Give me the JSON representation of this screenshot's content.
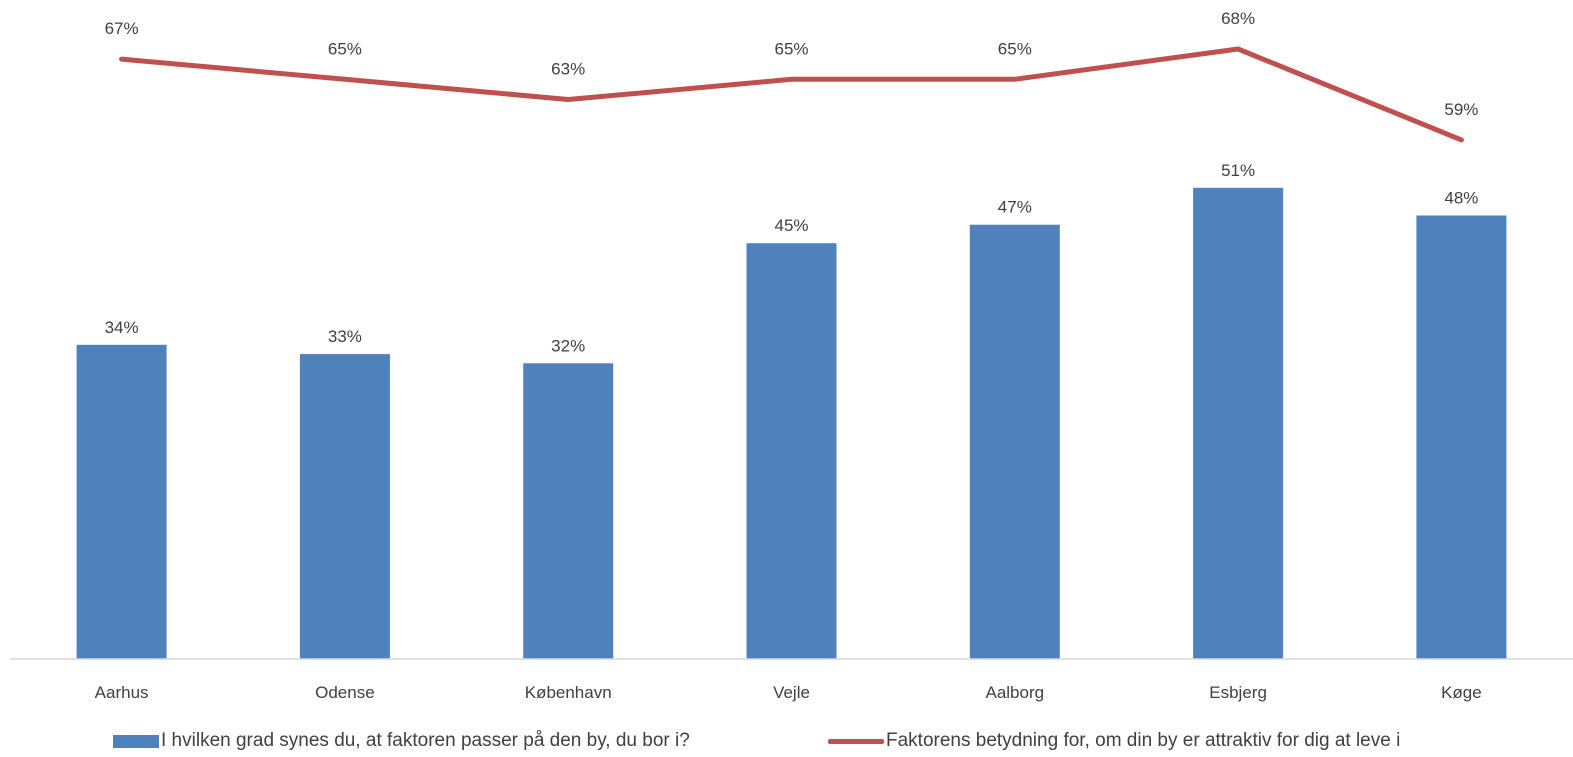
{
  "chart_data": {
    "type": "bar",
    "categories": [
      "Aarhus",
      "Odense",
      "København",
      "Vejle",
      "Aalborg",
      "Esbjerg",
      "Køge"
    ],
    "series": [
      {
        "name": "I hvilken grad synes du, at faktoren passer på den by, du bor i?",
        "type": "bar",
        "values": [
          34,
          33,
          32,
          45,
          47,
          51,
          48
        ],
        "labels": [
          "34%",
          "33%",
          "32%",
          "45%",
          "47%",
          "51%",
          "48%"
        ],
        "color": "#4F81BD"
      },
      {
        "name": "Faktorens betydning for, om din by er attraktiv for dig at leve i",
        "type": "line",
        "values": [
          67,
          65,
          63,
          65,
          65,
          68,
          59
        ],
        "labels": [
          "67%",
          "65%",
          "63%",
          "65%",
          "65%",
          "68%",
          "59%"
        ],
        "color": "#C0504D"
      }
    ],
    "ylim": [
      0,
      68
    ],
    "unit": "%",
    "grid": false,
    "legend_position": "bottom"
  }
}
